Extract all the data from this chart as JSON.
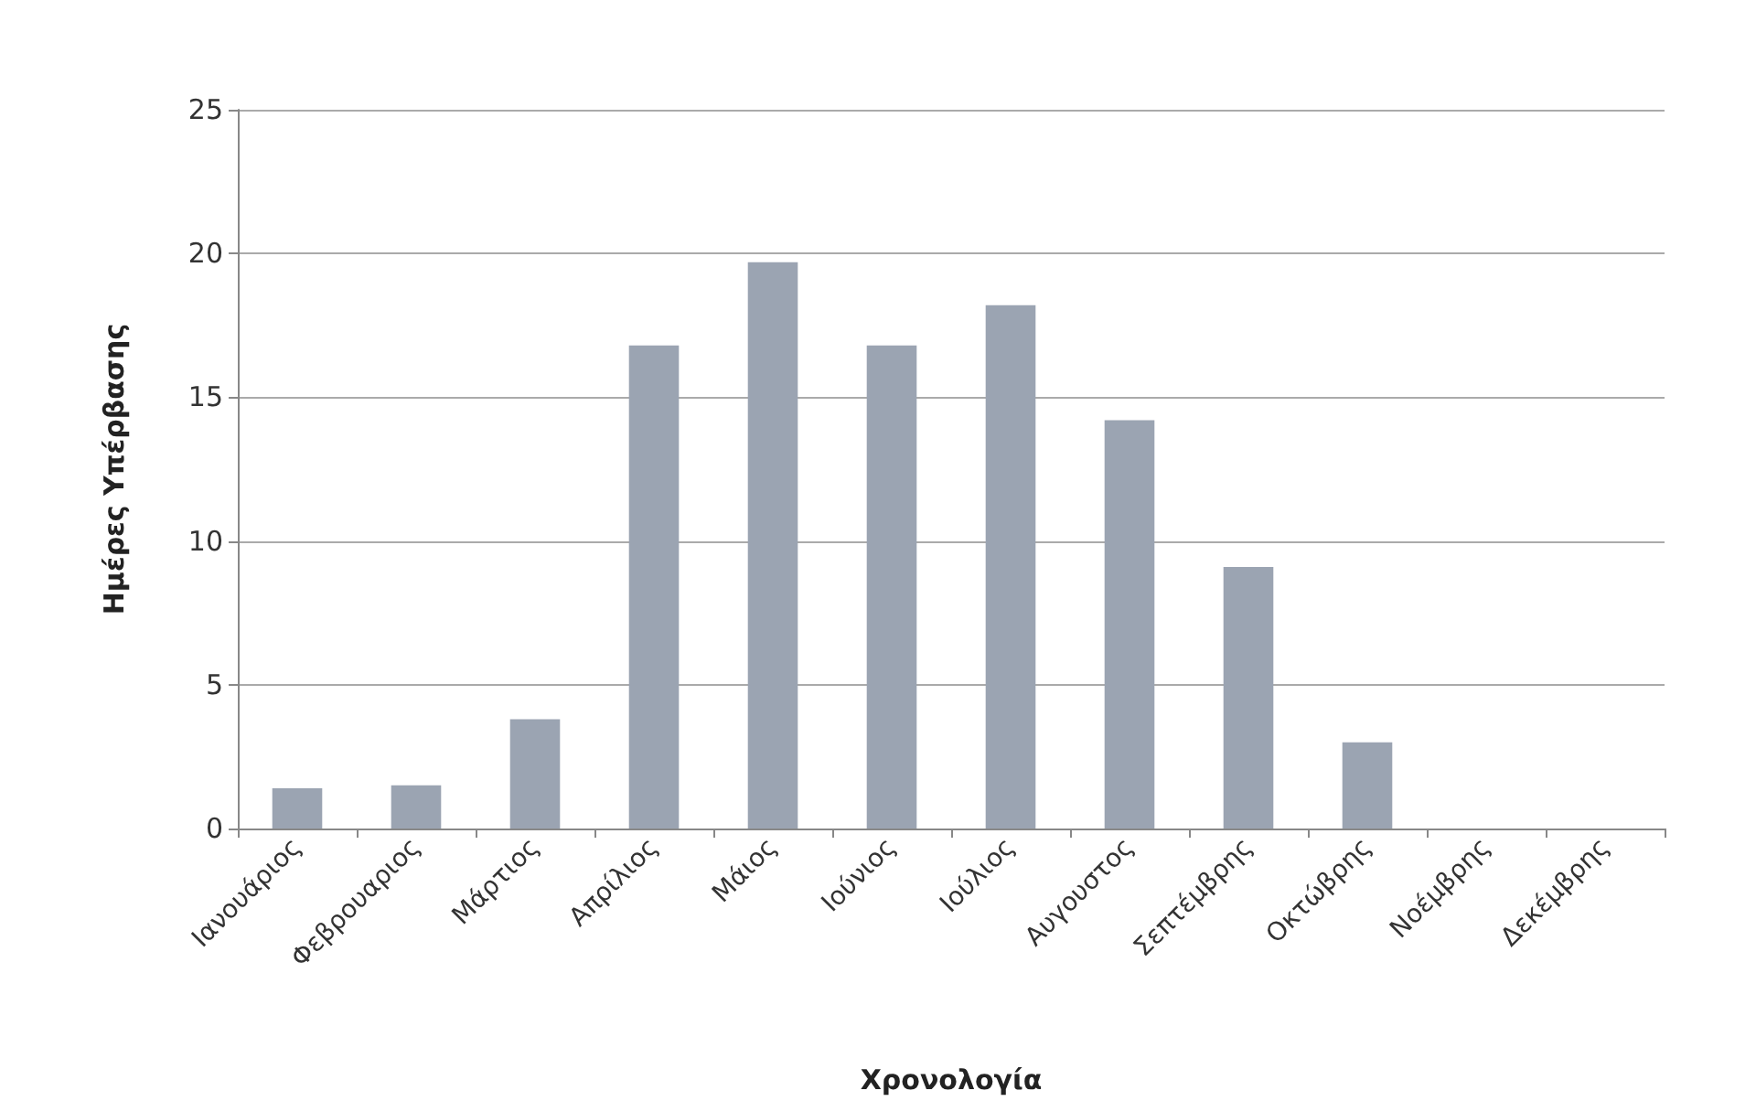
{
  "chart_data": {
    "type": "bar",
    "xlabel": "Χρονολογία",
    "ylabel": "Ημέρες Υπέρβασης",
    "categories": [
      "Ιανουάριος",
      "Φεβρουαριος",
      "Μάρτιος",
      "Απρίλιος",
      "Μάιος",
      "Ιούνιος",
      "Ιούλιος",
      "Αυγουστος",
      "Σεπτέμβρης",
      "Οκτώβρης",
      "Νοέμβρης",
      "Δεκέμβρης"
    ],
    "values": [
      1.4,
      1.5,
      3.8,
      16.8,
      19.7,
      16.8,
      18.2,
      14.2,
      9.1,
      3.0,
      0,
      0
    ],
    "color": "#9ba4b2",
    "ylim": [
      0,
      25
    ],
    "yticks": [
      0,
      5,
      10,
      15,
      20,
      25
    ],
    "grid": "y"
  }
}
